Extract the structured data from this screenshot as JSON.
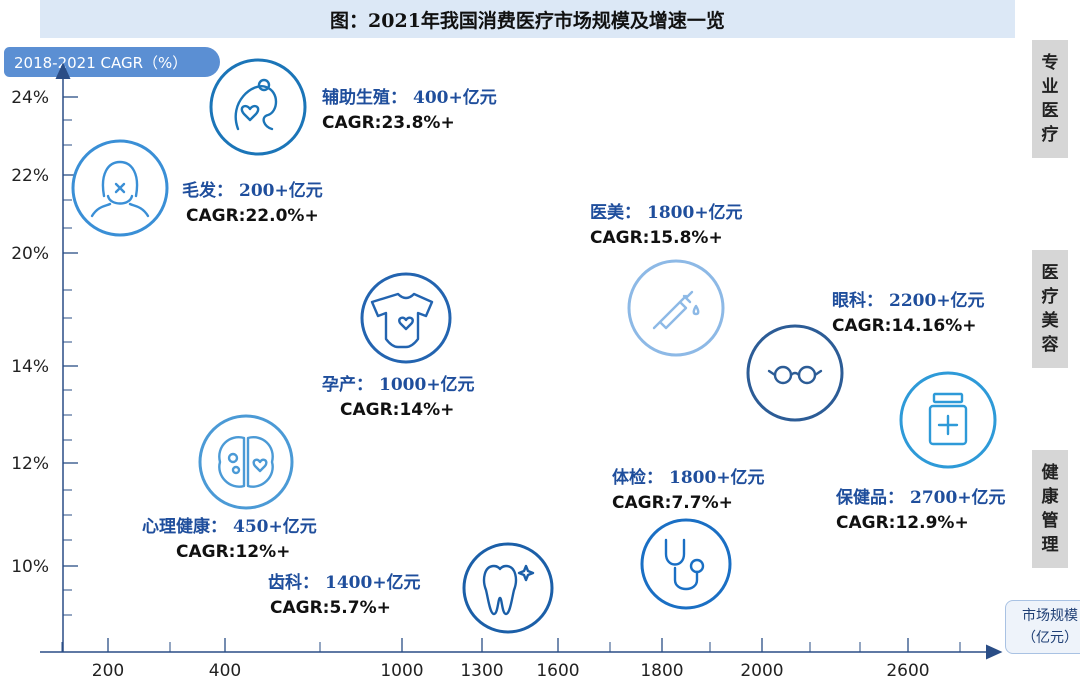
{
  "title": "图：2021年我国消费医疗市场规模及增速一览",
  "y_axis_title": "2018-2021 CAGR（%）",
  "x_axis_title": [
    "市场规模",
    "（亿元）"
  ],
  "side_tags": [
    {
      "text": "专业医疗",
      "chars": [
        "专",
        "业",
        "医",
        "疗"
      ]
    },
    {
      "text": "医疗美容",
      "chars": [
        "医",
        "疗",
        "美",
        "容"
      ]
    },
    {
      "text": "健康管理",
      "chars": [
        "健",
        "康",
        "管",
        "理"
      ]
    }
  ],
  "chart_data": {
    "type": "scatter",
    "y_ticks": [
      {
        "label": "24%"
      },
      {
        "label": "22%"
      },
      {
        "label": "20%"
      },
      {
        "label": "14%"
      },
      {
        "label": "12%"
      },
      {
        "label": "10%"
      }
    ],
    "x_ticks": [
      {
        "label": "200"
      },
      {
        "label": "400"
      },
      {
        "label": "1000"
      },
      {
        "label": "1300"
      },
      {
        "label": "1600"
      },
      {
        "label": "1800"
      },
      {
        "label": "2000"
      },
      {
        "label": "2600"
      }
    ],
    "points": [
      {
        "name": "辅助生殖",
        "value_text": "400+亿元",
        "cagr_text": "CAGR:23.8%+",
        "market_size": 400,
        "cagr": 23.8,
        "icon": "fertility-icon",
        "color": "#1b75b8"
      },
      {
        "name": "毛发",
        "value_text": "200+亿元",
        "cagr_text": "CAGR:22.0%+",
        "market_size": 200,
        "cagr": 22.0,
        "icon": "hair-icon",
        "color": "#3a8fd6"
      },
      {
        "name": "医美",
        "value_text": "1800+亿元",
        "cagr_text": "CAGR:15.8%+",
        "market_size": 1800,
        "cagr": 15.8,
        "icon": "syringe-icon",
        "color": "#8db9e6"
      },
      {
        "name": "眼科",
        "value_text": "2200+亿元",
        "cagr_text": "CAGR:14.16%+",
        "market_size": 2200,
        "cagr": 14.16,
        "icon": "glasses-icon",
        "color": "#2c5c96"
      },
      {
        "name": "孕产",
        "value_text": "1000+亿元",
        "cagr_text": "CAGR:14%+",
        "market_size": 1000,
        "cagr": 14,
        "icon": "baby-onesie-icon",
        "color": "#2364b0"
      },
      {
        "name": "保健品",
        "value_text": "2700+亿元",
        "cagr_text": "CAGR:12.9%+",
        "market_size": 2700,
        "cagr": 12.9,
        "icon": "medicine-bottle-icon",
        "color": "#2e9ad8"
      },
      {
        "name": "心理健康",
        "value_text": "450+亿元",
        "cagr_text": "CAGR:12%+",
        "market_size": 450,
        "cagr": 12,
        "icon": "brain-icon",
        "color": "#4b9ad6"
      },
      {
        "name": "体检",
        "value_text": "1800+亿元",
        "cagr_text": "CAGR:7.7%+",
        "market_size": 1800,
        "cagr": 7.7,
        "icon": "stethoscope-icon",
        "color": "#1a6fc4"
      },
      {
        "name": "齿科",
        "value_text": "1400+亿元",
        "cagr_text": "CAGR:5.7%+",
        "market_size": 1400,
        "cagr": 5.7,
        "icon": "tooth-icon",
        "color": "#1b5fa8"
      }
    ]
  }
}
